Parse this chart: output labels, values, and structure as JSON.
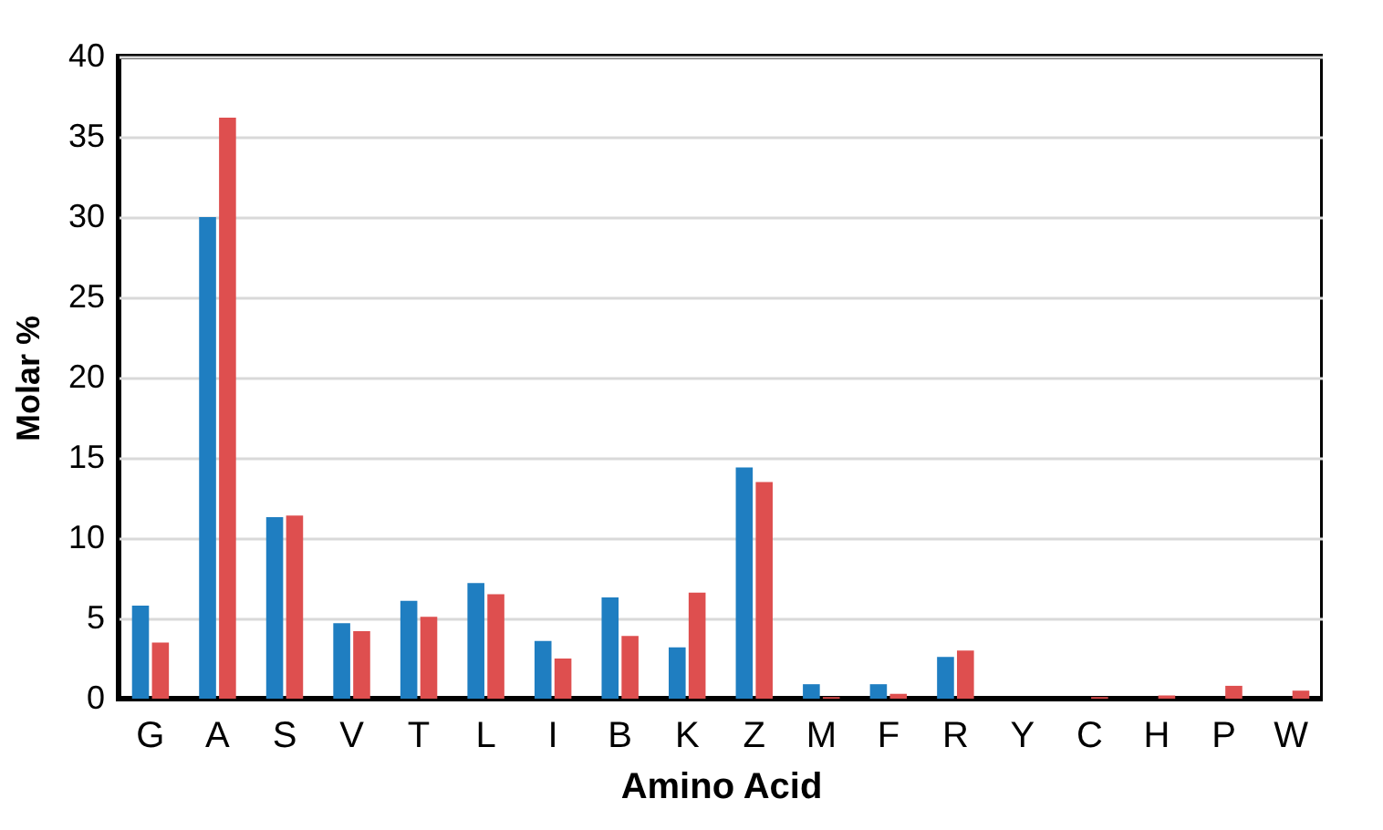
{
  "chart_data": {
    "type": "bar",
    "xlabel": "Amino Acid",
    "ylabel": "Molar %",
    "categories": [
      "G",
      "A",
      "S",
      "V",
      "T",
      "L",
      "I",
      "B",
      "K",
      "Z",
      "M",
      "F",
      "R",
      "Y",
      "C",
      "H",
      "P",
      "W"
    ],
    "series": [
      {
        "color": "#1f7ec1",
        "values": [
          5.8,
          30.0,
          11.3,
          4.7,
          6.1,
          7.2,
          3.6,
          6.3,
          3.2,
          14.4,
          0.9,
          0.9,
          2.6,
          0,
          0,
          0,
          0,
          0
        ]
      },
      {
        "color": "#de4f4f",
        "values": [
          3.5,
          36.2,
          11.4,
          4.2,
          5.1,
          6.5,
          2.5,
          3.9,
          6.6,
          13.5,
          0.1,
          0.3,
          3.0,
          0,
          0.1,
          0.2,
          0.8,
          0.5
        ]
      }
    ],
    "ylim": [
      0,
      40
    ],
    "yticks": [
      0,
      5,
      10,
      15,
      20,
      25,
      30,
      35,
      40
    ],
    "grid": "y",
    "legend": false
  }
}
